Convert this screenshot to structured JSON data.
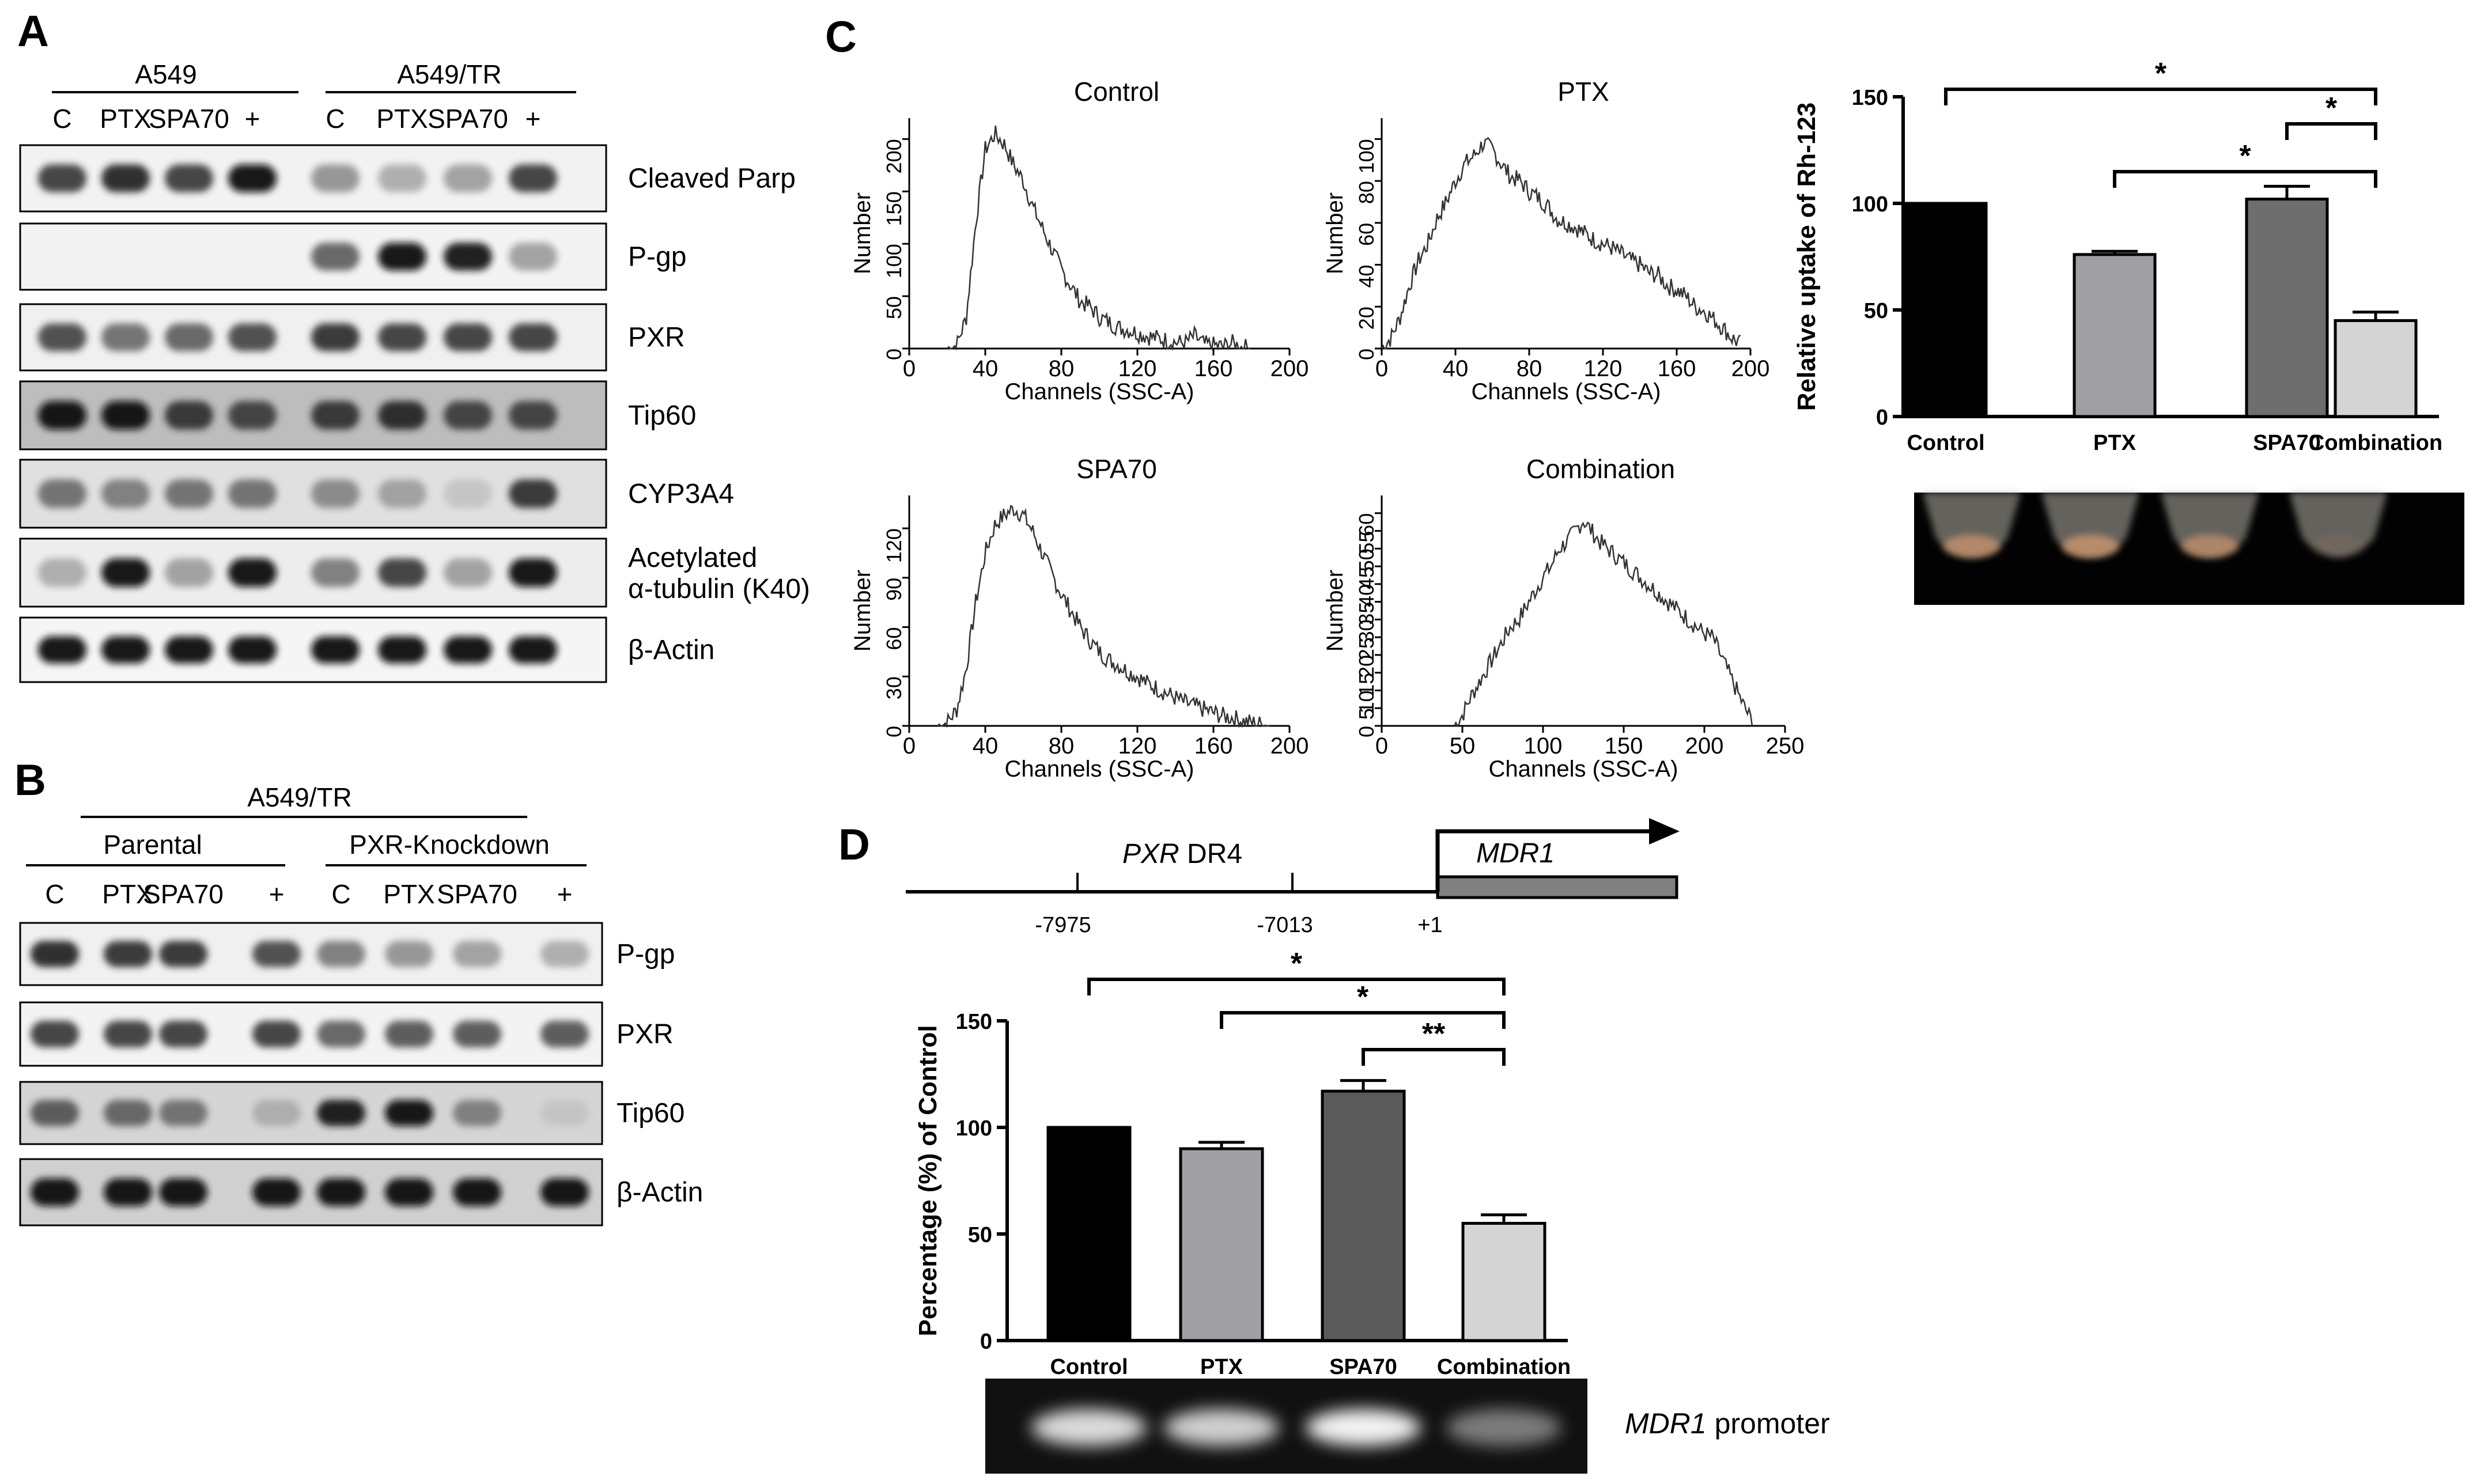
{
  "panel_labels": {
    "A": "A",
    "B": "B",
    "C": "C",
    "D": "D"
  },
  "panel_a": {
    "group_labels": [
      "A549",
      "A549/TR"
    ],
    "lane_labels": [
      "C",
      "PTX",
      "SPA70",
      "+",
      "C",
      "PTX",
      "SPA70",
      "+"
    ],
    "blots": [
      {
        "label": "Cleaved Parp",
        "bands": [
          0.75,
          0.85,
          0.75,
          0.95,
          0.4,
          0.3,
          0.35,
          0.75
        ],
        "background": "#f2f2f2"
      },
      {
        "label": "P-gp",
        "bands": [
          0.02,
          0.02,
          0.02,
          0.02,
          0.6,
          0.95,
          0.9,
          0.35
        ],
        "background": "#f3f3f3"
      },
      {
        "label": "PXR",
        "bands": [
          0.7,
          0.55,
          0.6,
          0.7,
          0.8,
          0.75,
          0.75,
          0.75
        ],
        "background": "#f0f0f0"
      },
      {
        "label": "Tip60",
        "bands": [
          0.95,
          0.95,
          0.8,
          0.75,
          0.8,
          0.85,
          0.75,
          0.75
        ],
        "background": "#bdbdbd"
      },
      {
        "label": "CYP3A4",
        "bands": [
          0.55,
          0.5,
          0.55,
          0.55,
          0.45,
          0.35,
          0.2,
          0.8
        ],
        "background": "#e0e0e0"
      },
      {
        "label_line1": "Acetylated",
        "label_line2": "α-tubulin (K40)",
        "bands": [
          0.3,
          0.95,
          0.35,
          0.95,
          0.5,
          0.75,
          0.35,
          0.95
        ],
        "background": "#ededed"
      },
      {
        "label": "β-Actin",
        "bands": [
          0.95,
          0.95,
          0.95,
          0.95,
          0.95,
          0.95,
          0.95,
          0.95
        ],
        "background": "#f5f5f5"
      }
    ]
  },
  "panel_b": {
    "title": "A549/TR",
    "group_labels": [
      "Parental",
      "PXR-Knockdown"
    ],
    "lane_labels": [
      "C",
      "PTX",
      "SPA70",
      "+",
      "C",
      "PTX",
      "SPA70",
      "+"
    ],
    "blots": [
      {
        "label": "P-gp",
        "bands": [
          0.85,
          0.8,
          0.8,
          0.7,
          0.5,
          0.4,
          0.35,
          0.3
        ],
        "background": "#f0f0f0"
      },
      {
        "label": "PXR",
        "bands": [
          0.75,
          0.75,
          0.75,
          0.75,
          0.6,
          0.65,
          0.65,
          0.65
        ],
        "background": "#f3f3f3"
      },
      {
        "label": "Tip60",
        "bands": [
          0.65,
          0.6,
          0.55,
          0.3,
          0.9,
          0.95,
          0.5,
          0.2
        ],
        "background": "#d5d5d5"
      },
      {
        "label": "β-Actin",
        "bands": [
          0.95,
          0.95,
          0.95,
          0.95,
          0.95,
          0.95,
          0.95,
          0.95
        ],
        "background": "#d0d0d0"
      }
    ]
  },
  "chart_data": [
    {
      "type": "line",
      "title": "Control",
      "xlabel": "Channels (SSC-A)",
      "ylabel": "Number",
      "xlim": [
        0,
        200
      ],
      "ylim": [
        0,
        220
      ],
      "xticks": [
        0,
        40,
        80,
        120,
        160,
        200
      ],
      "yticks": [
        0,
        50,
        100,
        150,
        200
      ],
      "x": [
        20,
        25,
        30,
        35,
        40,
        45,
        50,
        55,
        60,
        65,
        70,
        75,
        80,
        85,
        90,
        95,
        100,
        105,
        110,
        115,
        120,
        125,
        130,
        135,
        140,
        145,
        150,
        155,
        160,
        165,
        170,
        175,
        180
      ],
      "y": [
        0,
        3,
        30,
        120,
        190,
        205,
        195,
        175,
        160,
        135,
        115,
        95,
        75,
        60,
        45,
        40,
        30,
        25,
        20,
        18,
        15,
        12,
        10,
        8,
        6,
        5,
        12,
        4,
        3,
        2,
        5,
        1,
        1
      ]
    },
    {
      "type": "line",
      "title": "PTX",
      "xlabel": "Channels (SSC-A)",
      "ylabel": "Number",
      "xlim": [
        0,
        200
      ],
      "ylim": [
        0,
        110
      ],
      "xticks": [
        0,
        40,
        80,
        120,
        160,
        200
      ],
      "yticks": [
        0,
        20,
        40,
        60,
        80,
        100
      ],
      "x": [
        0,
        5,
        10,
        15,
        20,
        25,
        30,
        35,
        40,
        45,
        50,
        55,
        60,
        65,
        70,
        75,
        80,
        85,
        90,
        95,
        100,
        105,
        110,
        115,
        120,
        125,
        130,
        135,
        140,
        145,
        150,
        155,
        160,
        165,
        170,
        175,
        180,
        185,
        190,
        195
      ],
      "y": [
        0,
        5,
        15,
        30,
        42,
        50,
        62,
        70,
        80,
        88,
        92,
        98,
        95,
        88,
        82,
        80,
        75,
        72,
        68,
        62,
        60,
        58,
        55,
        52,
        50,
        48,
        45,
        42,
        40,
        36,
        35,
        30,
        28,
        25,
        20,
        18,
        14,
        10,
        5,
        2
      ]
    },
    {
      "type": "line",
      "title": "SPA70",
      "xlabel": "Channels (SSC-A)",
      "ylabel": "Number",
      "xlim": [
        0,
        200
      ],
      "ylim": [
        0,
        140
      ],
      "xticks": [
        0,
        40,
        80,
        120,
        160,
        200
      ],
      "yticks": [
        0,
        30,
        60,
        90,
        120
      ],
      "x": [
        15,
        20,
        25,
        30,
        35,
        40,
        45,
        50,
        55,
        60,
        65,
        70,
        75,
        80,
        85,
        90,
        95,
        100,
        105,
        110,
        115,
        120,
        125,
        130,
        135,
        140,
        145,
        150,
        155,
        160,
        165,
        170,
        175,
        180,
        185,
        190
      ],
      "y": [
        0,
        2,
        10,
        35,
        75,
        105,
        122,
        128,
        132,
        128,
        118,
        105,
        92,
        80,
        70,
        60,
        52,
        45,
        40,
        37,
        33,
        30,
        26,
        23,
        20,
        17,
        14,
        12,
        10,
        8,
        6,
        5,
        3,
        2,
        1,
        0
      ]
    },
    {
      "type": "line",
      "title": "Combination",
      "xlabel": "Channels (SSC-A)",
      "ylabel": "Number",
      "xlim": [
        0,
        250
      ],
      "ylim": [
        0,
        65
      ],
      "xticks": [
        0,
        50,
        100,
        150,
        200,
        250
      ],
      "yticks": [
        0,
        5,
        10,
        15,
        20,
        25,
        30,
        35,
        40,
        45,
        50,
        55,
        60
      ],
      "x": [
        45,
        50,
        55,
        60,
        65,
        70,
        75,
        80,
        85,
        90,
        95,
        100,
        105,
        110,
        115,
        120,
        125,
        130,
        135,
        140,
        145,
        150,
        155,
        160,
        165,
        170,
        175,
        180,
        185,
        190,
        195,
        200,
        205,
        210,
        215,
        220,
        225,
        230
      ],
      "y": [
        0,
        3,
        8,
        12,
        16,
        20,
        24,
        28,
        30,
        34,
        38,
        42,
        45,
        50,
        52,
        55,
        58,
        55,
        52,
        50,
        48,
        46,
        44,
        42,
        40,
        38,
        36,
        34,
        32,
        30,
        28,
        26,
        25,
        20,
        15,
        10,
        5,
        1
      ]
    },
    {
      "type": "bar",
      "categories": [
        "Control",
        "PTX",
        "SPA70",
        "Combination"
      ],
      "values": [
        100,
        76,
        102,
        45
      ],
      "errors": [
        0,
        1.5,
        6,
        4
      ],
      "colors": [
        "#000000",
        "#a0a0a4",
        "#6e6e6e",
        "#d4d4d4"
      ],
      "ylabel": "Relative uptake of Rh-123",
      "ylim": [
        0,
        150
      ],
      "yticks": [
        0,
        50,
        100,
        150
      ],
      "significance": [
        {
          "from": 0,
          "to": 3,
          "label": "*"
        },
        {
          "from": 2,
          "to": 3,
          "label": "*"
        },
        {
          "from": 1,
          "to": 3,
          "label": "*"
        }
      ]
    },
    {
      "type": "bar",
      "categories": [
        "Control",
        "PTX",
        "SPA70",
        "Combination"
      ],
      "values": [
        100,
        90,
        117,
        55
      ],
      "errors": [
        0,
        3,
        5,
        4
      ],
      "colors": [
        "#000000",
        "#a0a0a4",
        "#5a5a5a",
        "#d4d4d4"
      ],
      "ylabel": "Percentage (%) of Control",
      "ylim": [
        0,
        150
      ],
      "yticks": [
        0,
        50,
        100,
        150
      ],
      "significance": [
        {
          "from": 0,
          "to": 3,
          "label": "*"
        },
        {
          "from": 1,
          "to": 3,
          "label": "*"
        },
        {
          "from": 2,
          "to": 3,
          "label": "**"
        }
      ]
    }
  ],
  "panel_d_map": {
    "pxr": "PXR",
    "dr4": " DR4",
    "mdr1": "MDR1",
    "positions": [
      "-7975",
      "-7013",
      "+1"
    ]
  },
  "panel_d_gel": {
    "label_gene": "MDR1",
    "label_rest": " promoter",
    "band_intensity": [
      0.85,
      0.8,
      0.95,
      0.45
    ]
  },
  "tubes_intensity": [
    0.75,
    0.8,
    0.7,
    0.1
  ]
}
